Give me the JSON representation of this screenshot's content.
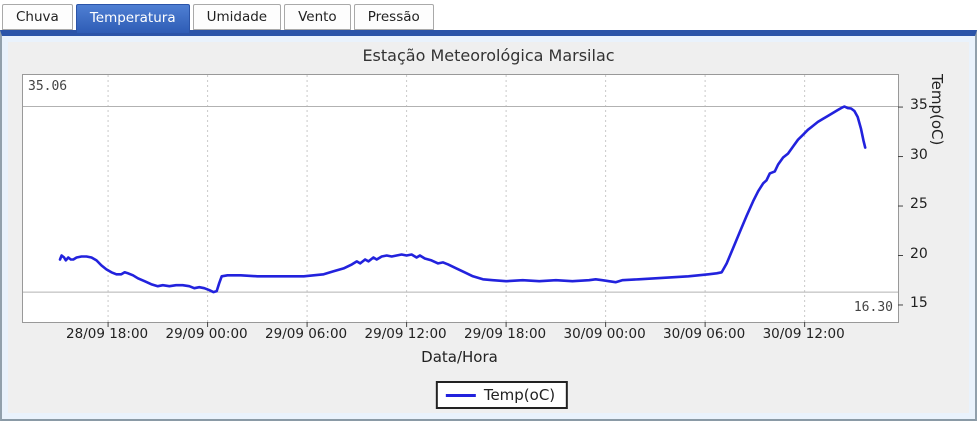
{
  "tab_bar": {
    "tabs": [
      {
        "label": "Chuva",
        "selected": false
      },
      {
        "label": "Temperatura",
        "selected": true
      },
      {
        "label": "Umidade",
        "selected": false
      },
      {
        "label": "Vento",
        "selected": false
      },
      {
        "label": "Pressão",
        "selected": false
      }
    ]
  },
  "colors": {
    "accent_blue": "#2b54a8",
    "selected_tab_top": "#4f7fd3",
    "selected_tab_bottom": "#2e5cb5",
    "line_blue": "#2222dd",
    "panel_background": "#e9f2fc",
    "figure_background": "#efefef",
    "grid_gray": "#c9c9c9",
    "refline_gray": "#b2b2b2"
  },
  "chart_data": {
    "type": "line",
    "title": "Estação Meteorológica Marsilac",
    "xlabel": "Data/Hora",
    "ylabel": "Temp(oC)",
    "legend_label": "Temp(oC)",
    "legend_position": "bottom-center",
    "grid": "vertical-dashed",
    "x_unit": "hours since 28/09 00:00",
    "xlim": [
      12.87,
      65.63
    ],
    "ylim": [
      13.28,
      38.24
    ],
    "x_ticks": [
      {
        "value": 18,
        "label": "28/09 18:00"
      },
      {
        "value": 24,
        "label": "29/09 00:00"
      },
      {
        "value": 30,
        "label": "29/09 06:00"
      },
      {
        "value": 36,
        "label": "29/09 12:00"
      },
      {
        "value": 42,
        "label": "29/09 18:00"
      },
      {
        "value": 48,
        "label": "30/09 00:00"
      },
      {
        "value": 54,
        "label": "30/09 06:00"
      },
      {
        "value": 60,
        "label": "30/09 12:00"
      }
    ],
    "y_ticks": [
      {
        "value": 15,
        "label": "15"
      },
      {
        "value": 20,
        "label": "20"
      },
      {
        "value": 25,
        "label": "25"
      },
      {
        "value": 30,
        "label": "30"
      },
      {
        "value": 35,
        "label": "35"
      }
    ],
    "max_annotation": {
      "value": 35.06,
      "label": "35.06"
    },
    "min_annotation": {
      "value": 16.3,
      "label": "16.30"
    },
    "series": [
      {
        "name": "Temp(oC)",
        "color": "#2222dd",
        "points": [
          [
            15.1,
            19.6
          ],
          [
            15.2,
            20.0
          ],
          [
            15.35,
            19.8
          ],
          [
            15.45,
            19.5
          ],
          [
            15.6,
            19.8
          ],
          [
            15.75,
            19.6
          ],
          [
            15.9,
            19.6
          ],
          [
            16.1,
            19.8
          ],
          [
            16.4,
            19.9
          ],
          [
            16.7,
            19.9
          ],
          [
            17.0,
            19.8
          ],
          [
            17.3,
            19.5
          ],
          [
            17.6,
            19.0
          ],
          [
            17.9,
            18.6
          ],
          [
            18.2,
            18.3
          ],
          [
            18.5,
            18.1
          ],
          [
            18.8,
            18.1
          ],
          [
            19.0,
            18.3
          ],
          [
            19.2,
            18.2
          ],
          [
            19.5,
            18.0
          ],
          [
            19.8,
            17.7
          ],
          [
            20.2,
            17.4
          ],
          [
            20.6,
            17.1
          ],
          [
            21.0,
            16.9
          ],
          [
            21.3,
            17.0
          ],
          [
            21.7,
            16.9
          ],
          [
            22.1,
            17.0
          ],
          [
            22.5,
            17.0
          ],
          [
            22.9,
            16.9
          ],
          [
            23.2,
            16.7
          ],
          [
            23.5,
            16.8
          ],
          [
            23.8,
            16.7
          ],
          [
            24.1,
            16.5
          ],
          [
            24.35,
            16.3
          ],
          [
            24.55,
            16.4
          ],
          [
            24.7,
            17.2
          ],
          [
            24.85,
            17.9
          ],
          [
            25.2,
            18.0
          ],
          [
            26.0,
            18.0
          ],
          [
            27.0,
            17.9
          ],
          [
            28.0,
            17.9
          ],
          [
            29.0,
            17.9
          ],
          [
            29.8,
            17.9
          ],
          [
            30.4,
            18.0
          ],
          [
            31.0,
            18.1
          ],
          [
            31.6,
            18.4
          ],
          [
            32.2,
            18.7
          ],
          [
            32.7,
            19.1
          ],
          [
            33.0,
            19.4
          ],
          [
            33.2,
            19.2
          ],
          [
            33.5,
            19.6
          ],
          [
            33.7,
            19.4
          ],
          [
            34.0,
            19.8
          ],
          [
            34.2,
            19.6
          ],
          [
            34.5,
            19.9
          ],
          [
            34.8,
            20.0
          ],
          [
            35.1,
            19.9
          ],
          [
            35.4,
            20.0
          ],
          [
            35.7,
            20.1
          ],
          [
            36.0,
            20.0
          ],
          [
            36.3,
            20.1
          ],
          [
            36.6,
            19.8
          ],
          [
            36.8,
            20.0
          ],
          [
            37.1,
            19.7
          ],
          [
            37.5,
            19.5
          ],
          [
            37.9,
            19.2
          ],
          [
            38.2,
            19.3
          ],
          [
            38.5,
            19.1
          ],
          [
            39.0,
            18.7
          ],
          [
            39.5,
            18.3
          ],
          [
            40.0,
            17.9
          ],
          [
            40.6,
            17.6
          ],
          [
            41.2,
            17.5
          ],
          [
            42.0,
            17.4
          ],
          [
            43.0,
            17.5
          ],
          [
            44.0,
            17.4
          ],
          [
            45.0,
            17.5
          ],
          [
            46.0,
            17.4
          ],
          [
            47.0,
            17.5
          ],
          [
            47.4,
            17.6
          ],
          [
            47.8,
            17.5
          ],
          [
            48.2,
            17.4
          ],
          [
            48.6,
            17.3
          ],
          [
            49.0,
            17.5
          ],
          [
            50.0,
            17.6
          ],
          [
            51.0,
            17.7
          ],
          [
            52.0,
            17.8
          ],
          [
            53.0,
            17.9
          ],
          [
            53.6,
            18.0
          ],
          [
            54.2,
            18.1
          ],
          [
            54.7,
            18.2
          ],
          [
            55.0,
            18.3
          ],
          [
            55.3,
            19.2
          ],
          [
            55.7,
            20.8
          ],
          [
            56.1,
            22.4
          ],
          [
            56.5,
            24.0
          ],
          [
            56.9,
            25.5
          ],
          [
            57.2,
            26.5
          ],
          [
            57.5,
            27.3
          ],
          [
            57.7,
            27.6
          ],
          [
            57.9,
            28.3
          ],
          [
            58.2,
            28.5
          ],
          [
            58.4,
            29.2
          ],
          [
            58.7,
            29.9
          ],
          [
            59.0,
            30.3
          ],
          [
            59.3,
            31.0
          ],
          [
            59.6,
            31.7
          ],
          [
            59.9,
            32.2
          ],
          [
            60.2,
            32.7
          ],
          [
            60.5,
            33.1
          ],
          [
            60.8,
            33.5
          ],
          [
            61.1,
            33.8
          ],
          [
            61.4,
            34.1
          ],
          [
            61.7,
            34.4
          ],
          [
            62.0,
            34.7
          ],
          [
            62.2,
            34.9
          ],
          [
            62.4,
            35.06
          ],
          [
            62.6,
            34.9
          ],
          [
            62.8,
            34.85
          ],
          [
            63.0,
            34.6
          ],
          [
            63.2,
            34.0
          ],
          [
            63.4,
            32.8
          ],
          [
            63.55,
            31.6
          ],
          [
            63.65,
            30.9
          ]
        ]
      }
    ]
  }
}
